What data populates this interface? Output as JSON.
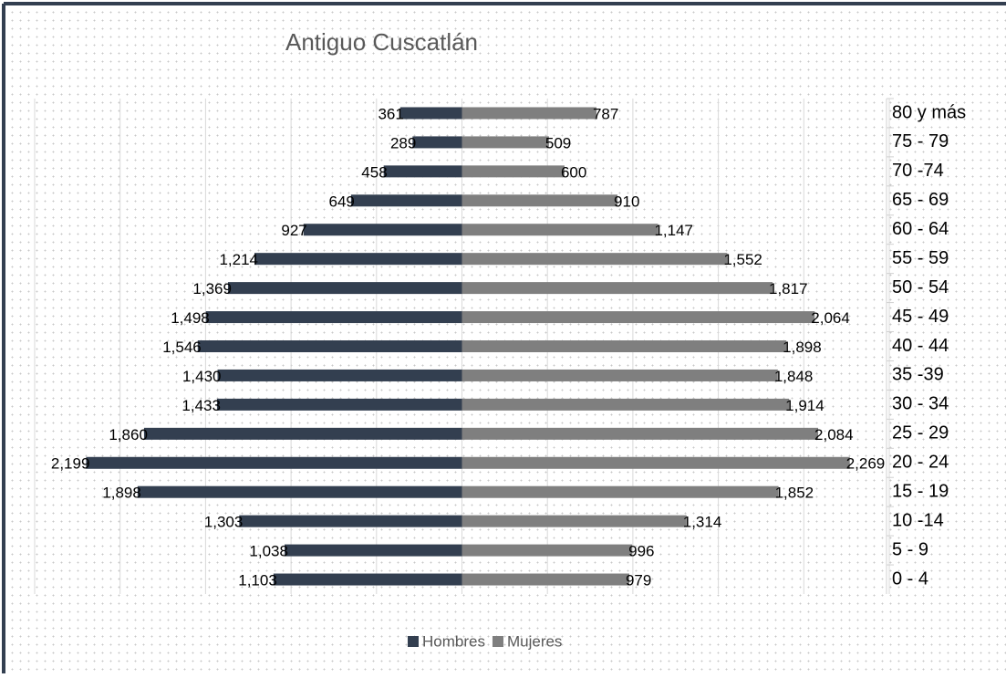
{
  "chart_data": {
    "type": "pyramid",
    "title": "Antiguo Cuscatlán",
    "categories": [
      "80 y más",
      "75 - 79",
      "70 -74",
      "65 - 69",
      "60 - 64",
      "55 - 59",
      "50 - 54",
      "45 - 49",
      "40 - 44",
      "35 -39",
      "30 - 34",
      "25 - 29",
      "20 - 24",
      "15 - 19",
      "10 -14",
      "5 - 9",
      "0 - 4"
    ],
    "series": [
      {
        "name": "Hombres",
        "color": "#333f50",
        "values": [
          361,
          289,
          458,
          649,
          927,
          1214,
          1369,
          1498,
          1546,
          1430,
          1433,
          1860,
          2199,
          1898,
          1303,
          1038,
          1103
        ],
        "value_labels": [
          "361",
          "289",
          "458",
          "649",
          "927",
          "1,214",
          "1,369",
          "1,498",
          "1,546",
          "1,430",
          "1,433",
          "1,860",
          "2,199",
          "1,898",
          "1,303",
          "1,038",
          "1,103"
        ]
      },
      {
        "name": "Mujeres",
        "color": "#7f7f7f",
        "values": [
          787,
          509,
          600,
          910,
          1147,
          1552,
          1817,
          2064,
          1898,
          1848,
          1914,
          2084,
          2269,
          1852,
          1314,
          996,
          979
        ],
        "value_labels": [
          "787",
          "509",
          "600",
          "910",
          "1,147",
          "1,552",
          "1,817",
          "2,064",
          "1,898",
          "1,848",
          "1,914",
          "2,084",
          "2,269",
          "1,852",
          "1,314",
          "996",
          "979"
        ]
      }
    ],
    "xlim": [
      -2500,
      2500
    ],
    "xticks": [
      -2500,
      -2000,
      -1500,
      -1000,
      -500,
      0,
      500,
      1000,
      1500,
      2000,
      2500
    ],
    "grid": true
  }
}
